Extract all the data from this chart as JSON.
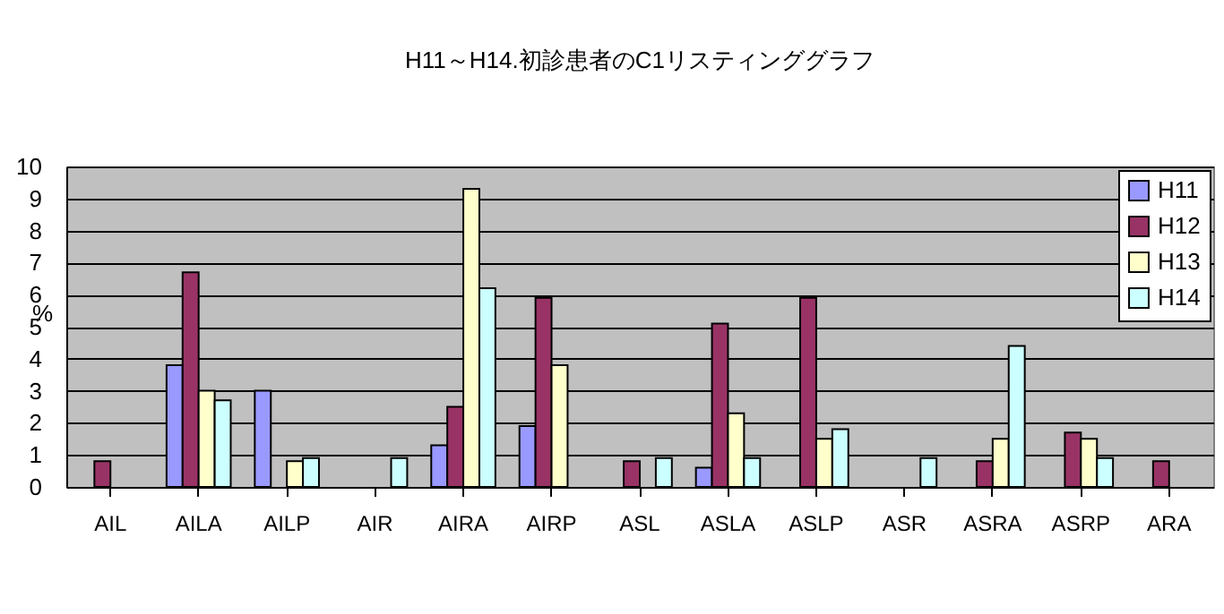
{
  "chart_data": {
    "type": "bar",
    "title": "H11～H14.初診患者のC1リスティンググラフ",
    "ylabel": "%",
    "categories": [
      "AIL",
      "AILA",
      "AILP",
      "AIR",
      "AIRA",
      "AIRP",
      "ASL",
      "ASLA",
      "ASLP",
      "ASR",
      "ASRA",
      "ASRP",
      "ARA"
    ],
    "series": [
      {
        "name": "H11",
        "color": "#9999ff",
        "values": [
          null,
          3.8,
          3.0,
          null,
          1.3,
          1.9,
          null,
          0.6,
          null,
          null,
          null,
          null,
          null
        ]
      },
      {
        "name": "H12",
        "color": "#993366",
        "values": [
          0.8,
          6.7,
          null,
          null,
          2.5,
          5.9,
          0.8,
          5.1,
          5.9,
          null,
          0.8,
          1.7,
          0.8
        ]
      },
      {
        "name": "H13",
        "color": "#ffffcc",
        "values": [
          null,
          3.0,
          0.8,
          null,
          9.3,
          3.8,
          null,
          2.3,
          1.5,
          null,
          1.5,
          1.5,
          null
        ]
      },
      {
        "name": "H14",
        "color": "#ccffff",
        "values": [
          null,
          2.7,
          0.9,
          0.9,
          6.2,
          null,
          0.9,
          0.9,
          1.8,
          0.9,
          4.4,
          0.9,
          null
        ]
      }
    ],
    "ylim": [
      0,
      10
    ],
    "yticks": [
      0,
      1,
      2,
      3,
      4,
      5,
      6,
      7,
      8,
      9,
      10
    ],
    "grid": "y",
    "legend": "top right"
  }
}
